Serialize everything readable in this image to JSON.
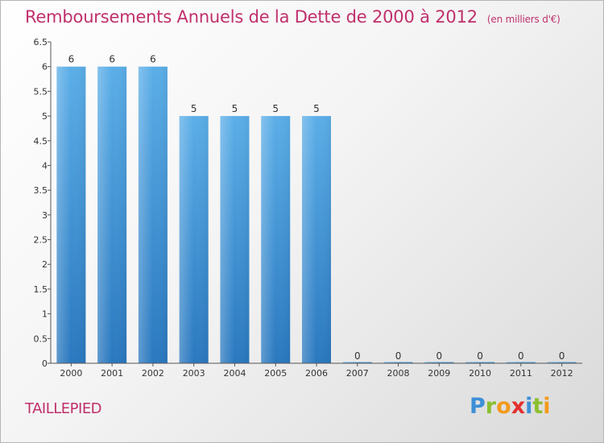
{
  "title": "Remboursements Annuels de la Dette de 2000 à 2012",
  "unit_note": "(en milliers d'€)",
  "commune": "TAILLEPIED",
  "logo": {
    "p": "P",
    "r": "r",
    "o": "o",
    "x": "x",
    "i1": "i",
    "t": "t",
    "i2": "i"
  },
  "colors": {
    "title": "#c0306c",
    "bar_top": "#5baee8",
    "bar_bottom": "#2a78bf"
  },
  "chart_data": {
    "type": "bar",
    "title": "Remboursements Annuels de la Dette de 2000 à 2012",
    "xlabel": "",
    "ylabel": "",
    "ylim": [
      0,
      6.5
    ],
    "yticks": [
      "0",
      "0.5",
      "1",
      "1.5",
      "2",
      "2.5",
      "3",
      "3.5",
      "4",
      "4.5",
      "5",
      "5.5",
      "6",
      "6.5"
    ],
    "grid": false,
    "categories": [
      "2000",
      "2001",
      "2002",
      "2003",
      "2004",
      "2005",
      "2006",
      "2007",
      "2008",
      "2009",
      "2010",
      "2011",
      "2012"
    ],
    "values": [
      6,
      6,
      6,
      5,
      5,
      5,
      5,
      0,
      0,
      0,
      0,
      0,
      0
    ],
    "data_labels": [
      "6",
      "6",
      "6",
      "5",
      "5",
      "5",
      "5",
      "0",
      "0",
      "0",
      "0",
      "0",
      "0"
    ]
  }
}
